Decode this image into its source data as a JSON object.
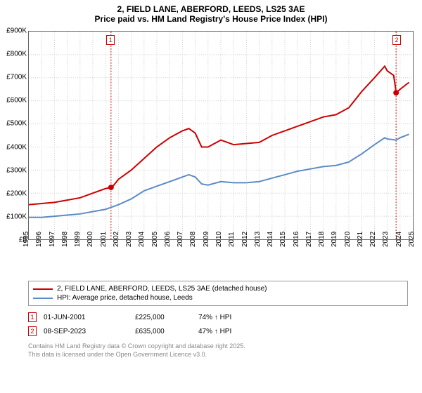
{
  "title": {
    "line1": "2, FIELD LANE, ABERFORD, LEEDS, LS25 3AE",
    "line2": "Price paid vs. HM Land Registry's House Price Index (HPI)",
    "fontsize": 12
  },
  "chart": {
    "type": "line",
    "plot_bg": "#ffffff",
    "border_color": "#666666",
    "grid_color": "#cccccc",
    "x": {
      "min": 1995,
      "max": 2025,
      "ticks": [
        1995,
        1996,
        1997,
        1998,
        1999,
        2000,
        2001,
        2002,
        2003,
        2004,
        2005,
        2006,
        2007,
        2008,
        2009,
        2010,
        2011,
        2012,
        2013,
        2014,
        2015,
        2016,
        2017,
        2018,
        2019,
        2020,
        2021,
        2022,
        2023,
        2024,
        2025
      ],
      "label_fontsize": 10
    },
    "y": {
      "min": 0,
      "max": 900000,
      "ticks": [
        0,
        100000,
        200000,
        300000,
        400000,
        500000,
        600000,
        700000,
        800000,
        900000
      ],
      "tick_labels": [
        "£0",
        "£100K",
        "£200K",
        "£300K",
        "£400K",
        "£500K",
        "£600K",
        "£700K",
        "£800K",
        "£900K"
      ],
      "label_fontsize": 10
    },
    "series": [
      {
        "id": "price_paid",
        "label": "2, FIELD LANE, ABERFORD, LEEDS, LS25 3AE (detached house)",
        "color": "#cc0000",
        "width": 2,
        "xy": [
          [
            1995,
            150000
          ],
          [
            1996,
            155000
          ],
          [
            1997,
            160000
          ],
          [
            1998,
            170000
          ],
          [
            1999,
            180000
          ],
          [
            2000,
            200000
          ],
          [
            2001,
            220000
          ],
          [
            2001.5,
            225000
          ],
          [
            2002,
            260000
          ],
          [
            2003,
            300000
          ],
          [
            2004,
            350000
          ],
          [
            2005,
            400000
          ],
          [
            2006,
            440000
          ],
          [
            2007,
            470000
          ],
          [
            2007.5,
            480000
          ],
          [
            2008,
            460000
          ],
          [
            2008.5,
            400000
          ],
          [
            2009,
            400000
          ],
          [
            2010,
            430000
          ],
          [
            2010.5,
            420000
          ],
          [
            2011,
            410000
          ],
          [
            2012,
            415000
          ],
          [
            2013,
            420000
          ],
          [
            2014,
            450000
          ],
          [
            2015,
            470000
          ],
          [
            2016,
            490000
          ],
          [
            2017,
            510000
          ],
          [
            2018,
            530000
          ],
          [
            2019,
            540000
          ],
          [
            2020,
            570000
          ],
          [
            2021,
            640000
          ],
          [
            2022,
            700000
          ],
          [
            2022.8,
            750000
          ],
          [
            2023,
            730000
          ],
          [
            2023.5,
            710000
          ],
          [
            2023.7,
            635000
          ],
          [
            2024,
            650000
          ],
          [
            2024.7,
            680000
          ]
        ]
      },
      {
        "id": "hpi",
        "label": "HPI: Average price, detached house, Leeds",
        "color": "#5b8bc9",
        "width": 2,
        "xy": [
          [
            1995,
            95000
          ],
          [
            1996,
            95000
          ],
          [
            1997,
            100000
          ],
          [
            1998,
            105000
          ],
          [
            1999,
            110000
          ],
          [
            2000,
            120000
          ],
          [
            2001,
            130000
          ],
          [
            2002,
            150000
          ],
          [
            2003,
            175000
          ],
          [
            2004,
            210000
          ],
          [
            2005,
            230000
          ],
          [
            2006,
            250000
          ],
          [
            2007,
            270000
          ],
          [
            2007.5,
            280000
          ],
          [
            2008,
            270000
          ],
          [
            2008.5,
            240000
          ],
          [
            2009,
            235000
          ],
          [
            2010,
            250000
          ],
          [
            2011,
            245000
          ],
          [
            2012,
            245000
          ],
          [
            2013,
            250000
          ],
          [
            2014,
            265000
          ],
          [
            2015,
            280000
          ],
          [
            2016,
            295000
          ],
          [
            2017,
            305000
          ],
          [
            2018,
            315000
          ],
          [
            2019,
            320000
          ],
          [
            2020,
            335000
          ],
          [
            2021,
            370000
          ],
          [
            2022,
            410000
          ],
          [
            2022.8,
            440000
          ],
          [
            2023,
            435000
          ],
          [
            2023.7,
            430000
          ],
          [
            2024,
            440000
          ],
          [
            2024.7,
            455000
          ]
        ]
      }
    ],
    "markers": [
      {
        "num": "1",
        "x": 2001.42,
        "y": 225000
      },
      {
        "num": "2",
        "x": 2023.69,
        "y": 635000
      }
    ]
  },
  "legend": {
    "border_color": "#999999",
    "entries": [
      {
        "color": "#cc0000",
        "label": "2, FIELD LANE, ABERFORD, LEEDS, LS25 3AE (detached house)"
      },
      {
        "color": "#5b8bc9",
        "label": "HPI: Average price, detached house, Leeds"
      }
    ]
  },
  "points_table": [
    {
      "num": "1",
      "date": "01-JUN-2001",
      "price": "£225,000",
      "pct": "74% ↑ HPI"
    },
    {
      "num": "2",
      "date": "08-SEP-2023",
      "price": "£635,000",
      "pct": "47% ↑ HPI"
    }
  ],
  "footer": {
    "line1": "Contains HM Land Registry data © Crown copyright and database right 2025.",
    "line2": "This data is licensed under the Open Government Licence v3.0.",
    "color": "#888888",
    "fontsize": 9
  }
}
